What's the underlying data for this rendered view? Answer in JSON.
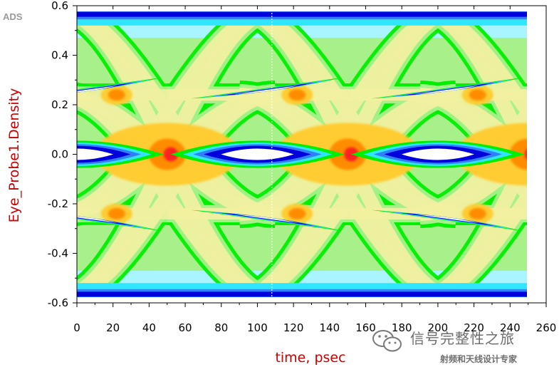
{
  "app_label": "ADS",
  "watermark": {
    "title": "信号完整性之旅",
    "subtitle": "射频和天线设计专家"
  },
  "chart_data": {
    "type": "heatmap",
    "subtype": "eye-diagram density",
    "title": "",
    "xlabel": "time, psec",
    "ylabel": "Eye_Probe1.Density",
    "xlim": [
      0,
      260
    ],
    "ylim": [
      -0.6,
      0.6
    ],
    "x_ticks": [
      0,
      20,
      40,
      60,
      80,
      100,
      120,
      140,
      160,
      180,
      200,
      220,
      240,
      260
    ],
    "y_ticks": [
      0.6,
      0.4,
      0.2,
      0.0,
      -0.2,
      -0.4,
      -0.6
    ],
    "y_tick_labels": [
      "0.6",
      "0.4",
      "0.2",
      "0.0",
      "-0.2",
      "-0.4",
      "-0.6"
    ],
    "data_x_extent": [
      0,
      250
    ],
    "unit_interval_psec": 100,
    "eye_centers_psec": [
      0,
      100,
      200
    ],
    "crossing_points_psec": [
      50,
      150,
      250
    ],
    "crossing_level": 0.0,
    "logic_levels": [
      0.58,
      0.24,
      -0.24,
      -0.58
    ],
    "marker_line_x": 108,
    "grid": false,
    "legend": "none",
    "colormap": [
      "#ffffff",
      "#0000dd",
      "#2f7fff",
      "#30e6ff",
      "#a8f4ff",
      "#00ee00",
      "#a8f08a",
      "#f0f0a0",
      "#ffcc33",
      "#ff8c00",
      "#ff2020"
    ]
  }
}
